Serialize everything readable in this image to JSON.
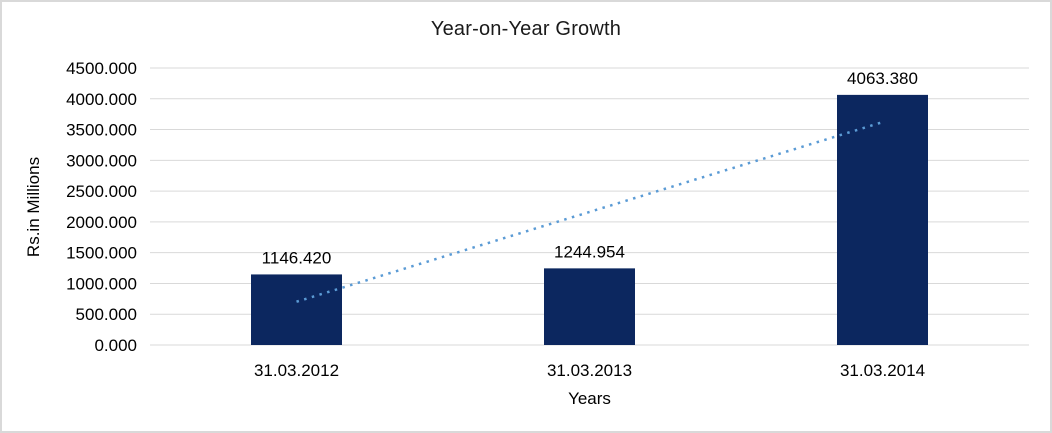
{
  "chart": {
    "title": "Year-on-Year Growth",
    "x_axis_title": "Years",
    "y_axis_title": "Rs.in Millions"
  },
  "chart_data": {
    "type": "bar",
    "title": "Year-on-Year Growth",
    "xlabel": "Years",
    "ylabel": "Rs.in Millions",
    "categories": [
      "31.03.2012",
      "31.03.2013",
      "31.03.2014"
    ],
    "values": [
      1146.42,
      1244.954,
      4063.38
    ],
    "value_labels": [
      "1146.420",
      "1244.954",
      "4063.380"
    ],
    "ylim": [
      0,
      4500
    ],
    "ytick_step": 500,
    "ytick_decimals": 3,
    "grid": true,
    "legend": "none",
    "colors": {
      "bar": "#0c275f",
      "trendline": "#5b9bd5",
      "gridline": "#d9d9d9",
      "text": "#000000",
      "frame_border": "#d9d9d9"
    },
    "trendline": {
      "type": "linear",
      "style": "dotted",
      "start_value": 703,
      "end_value": 3620
    }
  }
}
